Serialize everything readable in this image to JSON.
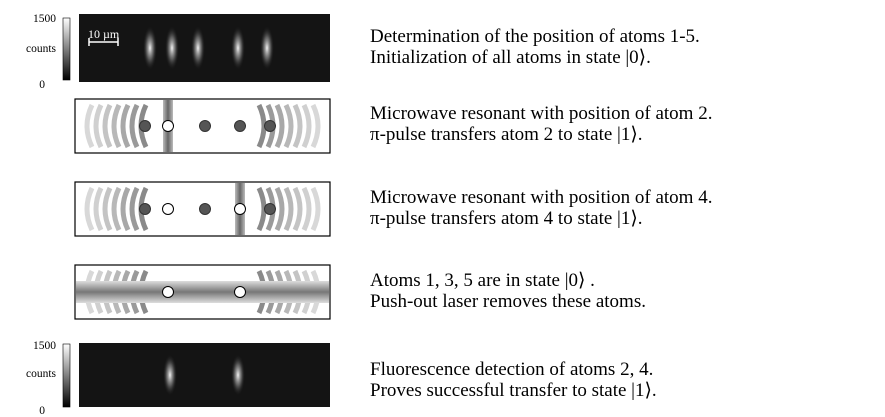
{
  "rows": [
    {
      "colorbar": {
        "max": "1500",
        "label": "counts",
        "min": "0"
      },
      "scale_bar": "10 µm",
      "caption": [
        "Determination of the position of atoms 1-5.",
        "Initialization of all atoms in state |0⟩."
      ]
    },
    {
      "caption": [
        "Microwave resonant with position of atom 2.",
        "π-pulse transfers atom 2 to state |1⟩."
      ]
    },
    {
      "caption": [
        "Microwave resonant with position of atom 4.",
        "π-pulse transfers atom 4 to state |1⟩."
      ]
    },
    {
      "caption": [
        "Atoms 1, 3, 5 are in state |0⟩ .",
        "Push-out laser removes these atoms."
      ]
    },
    {
      "colorbar": {
        "max": "1500",
        "label": "counts",
        "min": "0"
      },
      "caption": [
        "Fluorescence detection of atoms 2, 4.",
        "Proves successful transfer to state |1⟩."
      ]
    }
  ]
}
